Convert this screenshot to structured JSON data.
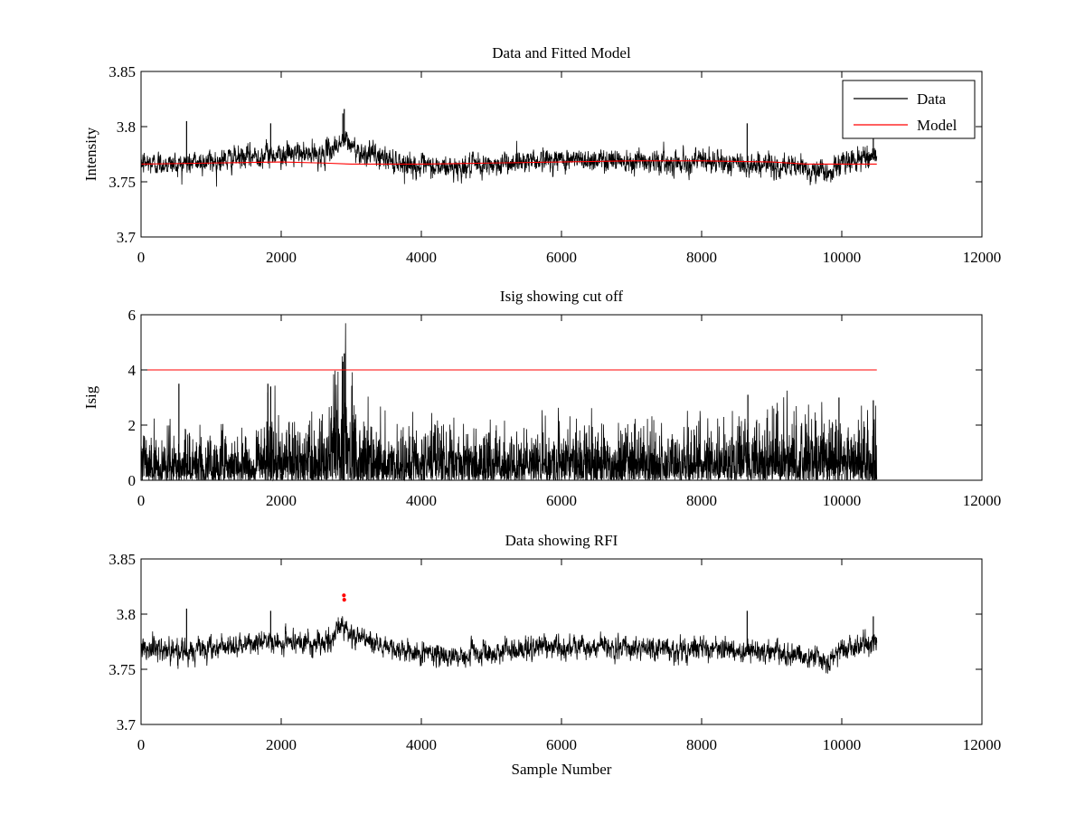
{
  "colors": {
    "data": "#000000",
    "model": "#ff0000",
    "axis": "#000000",
    "background": "#ffffff"
  },
  "chart_data": [
    {
      "type": "line",
      "title": "Data and Fitted Model",
      "xlabel": "",
      "ylabel": "Intensity",
      "xlim": [
        0,
        12000
      ],
      "ylim": [
        3.7,
        3.85
      ],
      "xticks": [
        0,
        2000,
        4000,
        6000,
        8000,
        10000,
        12000
      ],
      "xtick_labels": [
        "0",
        "2000",
        "4000",
        "6000",
        "8000",
        "10000",
        "12000"
      ],
      "yticks": [
        3.7,
        3.75,
        3.8,
        3.85
      ],
      "ytick_labels": [
        "3.7",
        "3.75",
        "3.8",
        "3.85"
      ],
      "legend": {
        "position": "top-right",
        "entries": [
          "Data",
          "Model"
        ]
      },
      "series": [
        {
          "name": "Data",
          "color": "#000000",
          "kind": "noise",
          "x_range": [
            0,
            10500
          ],
          "baseline": [
            [
              0,
              3.767
            ],
            [
              500,
              3.766
            ],
            [
              1000,
              3.769
            ],
            [
              1500,
              3.772
            ],
            [
              1800,
              3.775
            ],
            [
              2200,
              3.775
            ],
            [
              2600,
              3.774
            ],
            [
              2750,
              3.781
            ],
            [
              2900,
              3.788
            ],
            [
              3100,
              3.778
            ],
            [
              3500,
              3.771
            ],
            [
              4000,
              3.763
            ],
            [
              4500,
              3.763
            ],
            [
              5000,
              3.765
            ],
            [
              5500,
              3.77
            ],
            [
              6000,
              3.77
            ],
            [
              6500,
              3.77
            ],
            [
              7000,
              3.77
            ],
            [
              7500,
              3.768
            ],
            [
              8000,
              3.769
            ],
            [
              8500,
              3.766
            ],
            [
              9000,
              3.765
            ],
            [
              9500,
              3.762
            ],
            [
              9800,
              3.758
            ],
            [
              10000,
              3.767
            ],
            [
              10500,
              3.775
            ]
          ],
          "amplitude": 0.011,
          "spikes": [
            [
              2900,
              3.816
            ],
            [
              2880,
              3.812
            ],
            [
              650,
              3.805
            ],
            [
              1850,
              3.803
            ],
            [
              8650,
              3.803
            ],
            [
              10450,
              3.798
            ]
          ]
        },
        {
          "name": "Model",
          "color": "#ff0000",
          "kind": "line",
          "points": [
            [
              0,
              3.766
            ],
            [
              1000,
              3.767
            ],
            [
              2000,
              3.768
            ],
            [
              2600,
              3.767
            ],
            [
              3000,
              3.766
            ],
            [
              4000,
              3.766
            ],
            [
              5000,
              3.767
            ],
            [
              6000,
              3.768
            ],
            [
              7000,
              3.769
            ],
            [
              8000,
              3.769
            ],
            [
              9000,
              3.768
            ],
            [
              9500,
              3.766
            ],
            [
              10000,
              3.766
            ],
            [
              10500,
              3.766
            ]
          ]
        }
      ]
    },
    {
      "type": "line",
      "title": "Isig showing cut off",
      "xlabel": "",
      "ylabel": "Isig",
      "xlim": [
        0,
        12000
      ],
      "ylim": [
        0,
        6
      ],
      "xticks": [
        0,
        2000,
        4000,
        6000,
        8000,
        10000,
        12000
      ],
      "xtick_labels": [
        "0",
        "2000",
        "4000",
        "6000",
        "8000",
        "10000",
        "12000"
      ],
      "yticks": [
        0,
        2,
        4,
        6
      ],
      "ytick_labels": [
        "0",
        "2",
        "4",
        "6"
      ],
      "series": [
        {
          "name": "Isig",
          "color": "#000000",
          "kind": "absnoise",
          "x_range": [
            0,
            10500
          ],
          "scale": [
            [
              0,
              0.9
            ],
            [
              1500,
              0.9
            ],
            [
              1800,
              1.2
            ],
            [
              2600,
              1.1
            ],
            [
              2750,
              1.7
            ],
            [
              2900,
              2.4
            ],
            [
              3100,
              1.3
            ],
            [
              3600,
              1.0
            ],
            [
              4500,
              1.0
            ],
            [
              6000,
              1.0
            ],
            [
              7500,
              1.0
            ],
            [
              8600,
              1.2
            ],
            [
              9500,
              1.3
            ],
            [
              10500,
              1.2
            ]
          ],
          "spikes": [
            [
              2900,
              4.6
            ],
            [
              2880,
              4.3
            ],
            [
              540,
              3.5
            ],
            [
              1810,
              3.5
            ],
            [
              1850,
              3.4
            ],
            [
              8660,
              3.1
            ],
            [
              9960,
              3.0
            ],
            [
              10450,
              2.9
            ]
          ]
        },
        {
          "name": "Cut off",
          "color": "#ff0000",
          "kind": "line",
          "points": [
            [
              0,
              4
            ],
            [
              10500,
              4
            ]
          ]
        }
      ]
    },
    {
      "type": "line",
      "title": "Data showing RFI",
      "xlabel": "Sample Number",
      "ylabel": "",
      "xlim": [
        0,
        12000
      ],
      "ylim": [
        3.7,
        3.85
      ],
      "xticks": [
        0,
        2000,
        4000,
        6000,
        8000,
        10000,
        12000
      ],
      "xtick_labels": [
        "0",
        "2000",
        "4000",
        "6000",
        "8000",
        "10000",
        "12000"
      ],
      "yticks": [
        3.7,
        3.75,
        3.8,
        3.85
      ],
      "ytick_labels": [
        "3.7",
        "3.75",
        "3.8",
        "3.85"
      ],
      "series": [
        {
          "name": "Data",
          "color": "#000000",
          "kind": "noise",
          "x_range": [
            0,
            10500
          ],
          "baseline": [
            [
              0,
              3.767
            ],
            [
              500,
              3.766
            ],
            [
              1000,
              3.769
            ],
            [
              1500,
              3.772
            ],
            [
              1800,
              3.775
            ],
            [
              2200,
              3.775
            ],
            [
              2600,
              3.774
            ],
            [
              2750,
              3.781
            ],
            [
              2900,
              3.788
            ],
            [
              3100,
              3.778
            ],
            [
              3500,
              3.771
            ],
            [
              4000,
              3.763
            ],
            [
              4500,
              3.763
            ],
            [
              5000,
              3.765
            ],
            [
              5500,
              3.77
            ],
            [
              6000,
              3.77
            ],
            [
              6500,
              3.77
            ],
            [
              7000,
              3.77
            ],
            [
              7500,
              3.768
            ],
            [
              8000,
              3.769
            ],
            [
              8500,
              3.766
            ],
            [
              9000,
              3.765
            ],
            [
              9500,
              3.762
            ],
            [
              9800,
              3.758
            ],
            [
              10000,
              3.767
            ],
            [
              10500,
              3.775
            ]
          ],
          "amplitude": 0.011,
          "spikes": [
            [
              650,
              3.805
            ],
            [
              1850,
              3.803
            ],
            [
              8650,
              3.803
            ],
            [
              10450,
              3.798
            ]
          ]
        },
        {
          "name": "RFI",
          "color": "#ff0000",
          "kind": "markers",
          "points": [
            [
              2895,
              3.817
            ],
            [
              2900,
              3.813
            ]
          ]
        }
      ]
    }
  ]
}
